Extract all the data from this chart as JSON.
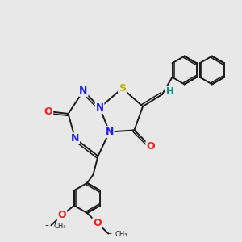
{
  "bg": "#e8e8e8",
  "bc": "#1a1a1a",
  "S_color": "#b8b800",
  "N_color": "#2020ee",
  "O_color": "#ee2020",
  "H_color": "#008888",
  "lw": 1.4,
  "figsize": [
    3.0,
    3.0
  ],
  "dpi": 100,
  "xlim": [
    0,
    10
  ],
  "ylim": [
    0,
    10
  ]
}
